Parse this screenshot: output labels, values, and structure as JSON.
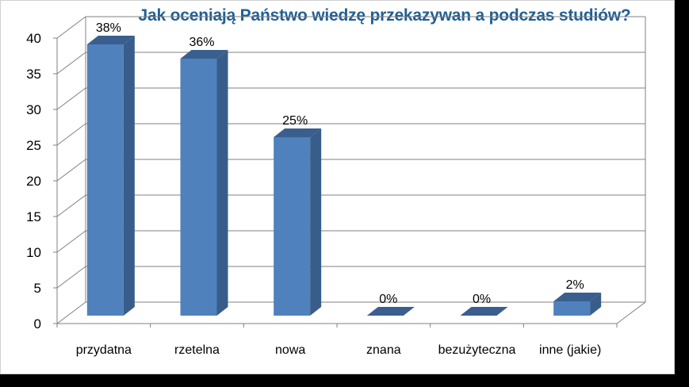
{
  "chart_data": {
    "type": "bar",
    "title": "Jak oceniają Państwo wiedzę przekazywan a podczas studiów?",
    "categories": [
      "przydatna",
      "rzetelna",
      "nowa",
      "znana",
      "bezużyteczna",
      "inne (jakie)"
    ],
    "values": [
      38,
      36,
      25,
      0,
      0,
      2
    ],
    "data_labels": [
      "38%",
      "36%",
      "25%",
      "0%",
      "0%",
      "2%"
    ],
    "yticks": [
      "0",
      "5",
      "10",
      "15",
      "20",
      "25",
      "30",
      "35",
      "40"
    ],
    "ylim": [
      0,
      40
    ],
    "grid": true,
    "style": "3d-column",
    "colors": {
      "bar_front": "#4f81bd",
      "bar_side": "#385d8a",
      "bar_top": "#3a5f8e",
      "title": "#1f5f96",
      "grid": "#808080",
      "background": "#ffffff",
      "outer": "#000000"
    }
  }
}
